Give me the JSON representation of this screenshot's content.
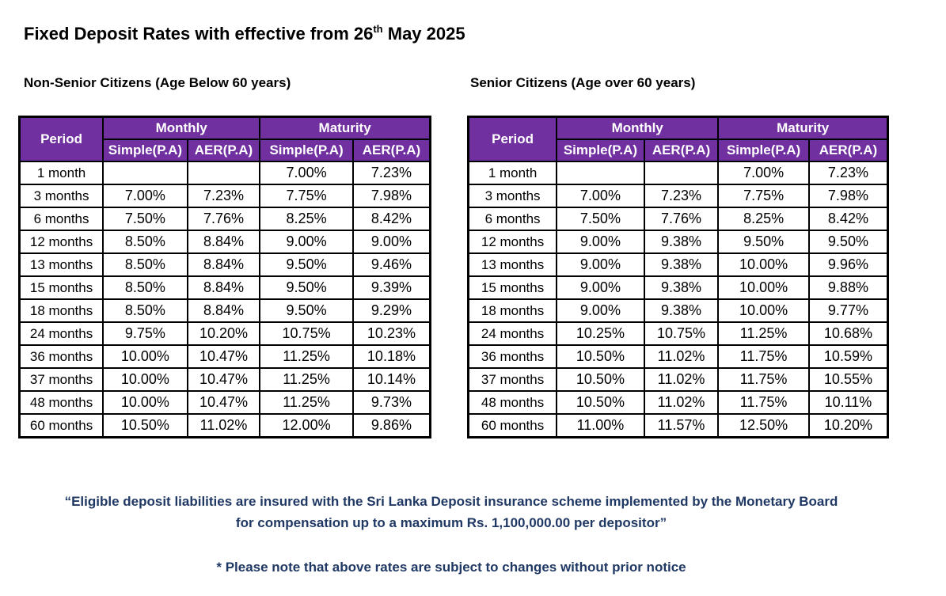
{
  "title": {
    "main": "Fixed Deposit Rates with effective from 26",
    "sup": "th",
    "tail": " May 2025"
  },
  "headers": {
    "period": "Period",
    "monthly": "Monthly",
    "maturity": "Maturity",
    "simple": "Simple(P.A)",
    "aer": "AER(P.A)"
  },
  "non_senior": {
    "heading": "Non-Senior Citizens (Age Below 60 years)",
    "rows": [
      [
        "1 month",
        "",
        "",
        "7.00%",
        "7.23%"
      ],
      [
        "3 months",
        "7.00%",
        "7.23%",
        "7.75%",
        "7.98%"
      ],
      [
        "6 months",
        "7.50%",
        "7.76%",
        "8.25%",
        "8.42%"
      ],
      [
        "12 months",
        "8.50%",
        "8.84%",
        "9.00%",
        "9.00%"
      ],
      [
        "13 months",
        "8.50%",
        "8.84%",
        "9.50%",
        "9.46%"
      ],
      [
        "15 months",
        "8.50%",
        "8.84%",
        "9.50%",
        "9.39%"
      ],
      [
        "18 months",
        "8.50%",
        "8.84%",
        "9.50%",
        "9.29%"
      ],
      [
        "24 months",
        "9.75%",
        "10.20%",
        "10.75%",
        "10.23%"
      ],
      [
        "36 months",
        "10.00%",
        "10.47%",
        "11.25%",
        "10.18%"
      ],
      [
        "37 months",
        "10.00%",
        "10.47%",
        "11.25%",
        "10.14%"
      ],
      [
        "48 months",
        "10.00%",
        "10.47%",
        "11.25%",
        "9.73%"
      ],
      [
        "60 months",
        "10.50%",
        "11.02%",
        "12.00%",
        "9.86%"
      ]
    ]
  },
  "senior": {
    "heading": "Senior Citizens (Age over 60 years)",
    "rows": [
      [
        "1 month",
        "",
        "",
        "7.00%",
        "7.23%"
      ],
      [
        "3 months",
        "7.00%",
        "7.23%",
        "7.75%",
        "7.98%"
      ],
      [
        "6 months",
        "7.50%",
        "7.76%",
        "8.25%",
        "8.42%"
      ],
      [
        "12 months",
        "9.00%",
        "9.38%",
        "9.50%",
        "9.50%"
      ],
      [
        "13 months",
        "9.00%",
        "9.38%",
        "10.00%",
        "9.96%"
      ],
      [
        "15 months",
        "9.00%",
        "9.38%",
        "10.00%",
        "9.88%"
      ],
      [
        "18 months",
        "9.00%",
        "9.38%",
        "10.00%",
        "9.77%"
      ],
      [
        "24 months",
        "10.25%",
        "10.75%",
        "11.25%",
        "10.68%"
      ],
      [
        "36 months",
        "10.50%",
        "11.02%",
        "11.75%",
        "10.59%"
      ],
      [
        "37 months",
        "10.50%",
        "11.02%",
        "11.75%",
        "10.55%"
      ],
      [
        "48 months",
        "10.50%",
        "11.02%",
        "11.75%",
        "10.11%"
      ],
      [
        "60 months",
        "11.00%",
        "11.57%",
        "12.50%",
        "10.20%"
      ]
    ]
  },
  "footer": {
    "insurance_line1": "“Eligible deposit liabilities are insured with the Sri Lanka Deposit insurance scheme implemented by the Monetary Board",
    "insurance_line2": "for compensation up to a maximum Rs. 1,100,000.00 per depositor”",
    "notice": "* Please note that above rates are subject to changes without prior notice"
  },
  "colors": {
    "header_bg": "#7030a0",
    "header_text": "#ffffff",
    "footer_text": "#1f3864"
  }
}
